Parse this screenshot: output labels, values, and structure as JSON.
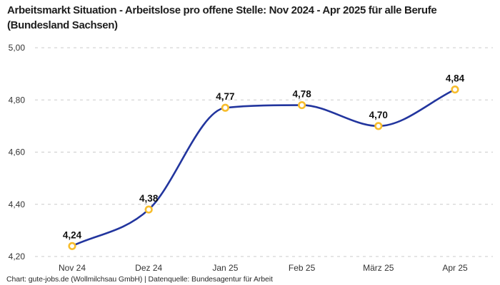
{
  "title": "Arbeitsmarkt Situation - Arbeitslose pro offene Stelle: Nov 2024 - Apr 2025 für alle Berufe (Bundesland Sachsen)",
  "footer": "Chart: gute-jobs.de (Wollmilchsau GmbH) | Datenquelle: Bundesagentur für Arbeit",
  "chart_data": {
    "type": "line",
    "title": "Arbeitsmarkt Situation - Arbeitslose pro offene Stelle: Nov 2024 - Apr 2025 für alle Berufe (Bundesland Sachsen)",
    "categories": [
      "Nov 24",
      "Dez 24",
      "Jan 25",
      "Feb 25",
      "März 25",
      "Apr 25"
    ],
    "values": [
      4.24,
      4.38,
      4.77,
      4.78,
      4.7,
      4.84
    ],
    "value_labels": [
      "4,24",
      "4,38",
      "4,77",
      "4,78",
      "4,70",
      "4,84"
    ],
    "ylim": [
      4.2,
      5.0
    ],
    "yticks": [
      4.2,
      4.4,
      4.6,
      4.8,
      5.0
    ],
    "ytick_labels": [
      "4,20",
      "4,40",
      "4,60",
      "4,80",
      "5,00"
    ],
    "xlabel": "",
    "ylabel": "",
    "grid": "horizontal-dashed",
    "legend": "none",
    "curve": "monotone",
    "colors": {
      "line": "#22359E",
      "marker_ring": "#F7BD2D",
      "marker_fill": "#FFFFFF",
      "gridline": "#CBCBCB",
      "axis_text": "#333333",
      "value_label_text": "#111111"
    }
  }
}
